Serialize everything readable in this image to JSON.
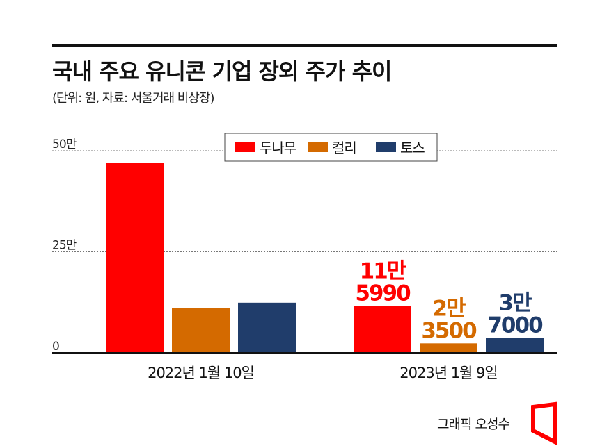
{
  "header": {
    "title": "국내 주요 유니콘 기업 장외 주가 추이",
    "subtitle": "(단위: 원, 자료: 서울거래 비상장)"
  },
  "credit": "그래픽 오성수",
  "chart_data": {
    "type": "bar",
    "categories": [
      "2022년 1월 10일",
      "2023년 1월 9일"
    ],
    "series": [
      {
        "name": "두나무",
        "color": "#ff0000",
        "values": [
          470000,
          115990
        ],
        "labels": [
          "",
          "11만\n5990"
        ]
      },
      {
        "name": "컬리",
        "color": "#d46a00",
        "values": [
          110000,
          23500
        ],
        "labels": [
          "",
          "2만\n3500"
        ]
      },
      {
        "name": "토스",
        "color": "#203d6b",
        "values": [
          124000,
          37000
        ],
        "labels": [
          "",
          "3만\n7000"
        ]
      }
    ],
    "yticks": [
      {
        "value": 0,
        "label": "0"
      },
      {
        "value": 250000,
        "label": "25만"
      },
      {
        "value": 500000,
        "label": "50만"
      }
    ],
    "ylim": [
      0,
      500000
    ],
    "grid": true,
    "legend": "top-center"
  }
}
